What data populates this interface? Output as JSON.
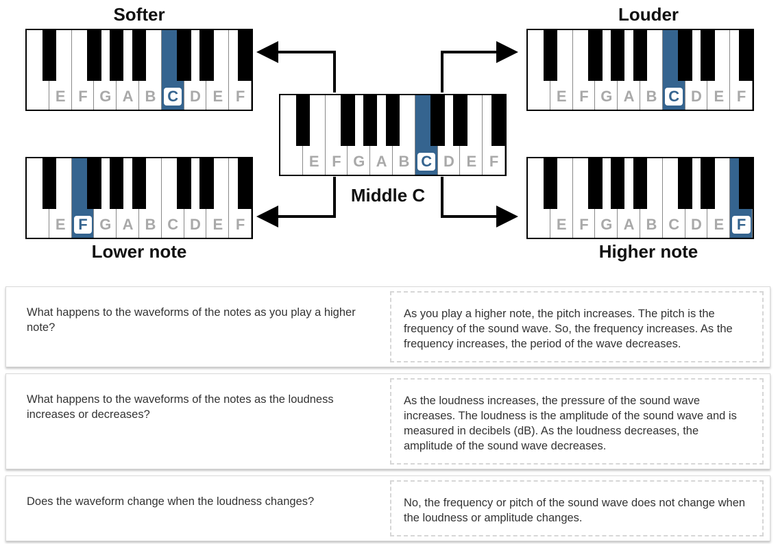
{
  "diagram": {
    "labels": {
      "softer": "Softer",
      "louder": "Louder",
      "middle_c": "Middle C",
      "lower_note": "Lower note",
      "higher_note": "Higher note"
    },
    "note_letters": [
      "E",
      "F",
      "G",
      "A",
      "B",
      "C",
      "D",
      "E",
      "F"
    ],
    "highlight_color": "#35648f",
    "keyboards": [
      {
        "id": "softer",
        "highlight": "C"
      },
      {
        "id": "louder",
        "highlight": "C"
      },
      {
        "id": "middle",
        "highlight": "C"
      },
      {
        "id": "lower",
        "highlight": "F"
      },
      {
        "id": "higher",
        "highlight": "F"
      }
    ]
  },
  "qa": [
    {
      "question": "What happens to the waveforms of the notes as you play a higher note?",
      "answer": "As you play a higher note, the pitch increases. The pitch is the frequency of the sound wave. So, the frequency increases. As the frequency increases, the period of the wave decreases."
    },
    {
      "question": "What happens to the waveforms of the notes as the loudness increases or decreases?",
      "answer": "As the loudness increases, the pressure of the sound wave increases. The loudness is the amplitude of the sound wave and is measured in decibels (dB). As the loudness decreases, the amplitude of the sound wave decreases."
    },
    {
      "question": "Does the waveform change when the loudness changes?",
      "answer": "No, the frequency or pitch of the sound wave does not change when the loudness or amplitude changes."
    }
  ]
}
